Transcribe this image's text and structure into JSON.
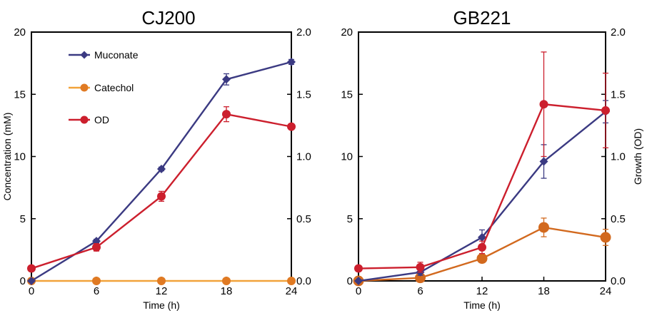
{
  "chart_data": [
    {
      "type": "line",
      "title": "CJ200",
      "xlabel": "Time (h)",
      "ylabel": "Concentration (mM)",
      "y2label": "",
      "x": [
        0,
        6,
        12,
        18,
        24
      ],
      "xlim": [
        0,
        24
      ],
      "ylim": [
        0,
        20
      ],
      "y2lim": [
        0,
        2
      ],
      "x_ticks": [
        "0",
        "6",
        "12",
        "18",
        "24"
      ],
      "y_ticks": [
        "0",
        "5",
        "10",
        "15",
        "20"
      ],
      "y2_ticks": [
        "0.0",
        "0.5",
        "1.0",
        "1.5",
        "2.0"
      ],
      "grid": false,
      "legend_position": "top-left",
      "series": [
        {
          "name": "Muconate",
          "axis": "left",
          "color": "#3b3a82",
          "marker": "diamond",
          "values": [
            0,
            3.2,
            9.0,
            16.2,
            17.6
          ],
          "errors": [
            0,
            0.15,
            0.15,
            0.45,
            0.2
          ]
        },
        {
          "name": "Catechol",
          "axis": "left",
          "color": "#e07a23",
          "line_color": "#f2a33a",
          "marker": "circle",
          "values": [
            0,
            0,
            0,
            0,
            0
          ],
          "errors": [
            0,
            0,
            0,
            0,
            0
          ]
        },
        {
          "name": "OD",
          "axis": "right",
          "color": "#cc1f2d",
          "marker": "circle",
          "values": [
            0.1,
            0.27,
            0.68,
            1.34,
            1.24
          ],
          "errors": [
            0,
            0.03,
            0.04,
            0.06,
            0.02
          ]
        }
      ]
    },
    {
      "type": "line",
      "title": "GB221",
      "xlabel": "Time (h)",
      "ylabel": "",
      "y2label": "Growth (OD)",
      "x": [
        0,
        6,
        12,
        18,
        24
      ],
      "xlim": [
        0,
        24
      ],
      "ylim": [
        0,
        20
      ],
      "y2lim": [
        0,
        2
      ],
      "x_ticks": [
        "0",
        "6",
        "12",
        "18",
        "24"
      ],
      "y_ticks": [
        "0",
        "5",
        "10",
        "15",
        "20"
      ],
      "y2_ticks": [
        "0.0",
        "0.5",
        "1.0",
        "1.5",
        "2.0"
      ],
      "grid": false,
      "series": [
        {
          "name": "Muconate",
          "axis": "left",
          "color": "#3b3a82",
          "marker": "diamond",
          "values": [
            0,
            0.7,
            3.5,
            9.6,
            13.6
          ],
          "errors": [
            0,
            0.25,
            0.6,
            1.35,
            0.9
          ]
        },
        {
          "name": "Catechol",
          "axis": "left",
          "color": "#d2691e",
          "line_color": "#d2691e",
          "marker": "circle",
          "values": [
            0,
            0.25,
            1.8,
            4.3,
            3.5
          ],
          "errors": [
            0,
            0.1,
            0.2,
            0.75,
            0.65
          ]
        },
        {
          "name": "OD",
          "axis": "right",
          "color": "#cc1f2d",
          "marker": "circle",
          "values": [
            0.1,
            0.11,
            0.27,
            1.42,
            1.37
          ],
          "errors": [
            0,
            0.04,
            0.05,
            0.42,
            0.3
          ]
        }
      ]
    }
  ]
}
